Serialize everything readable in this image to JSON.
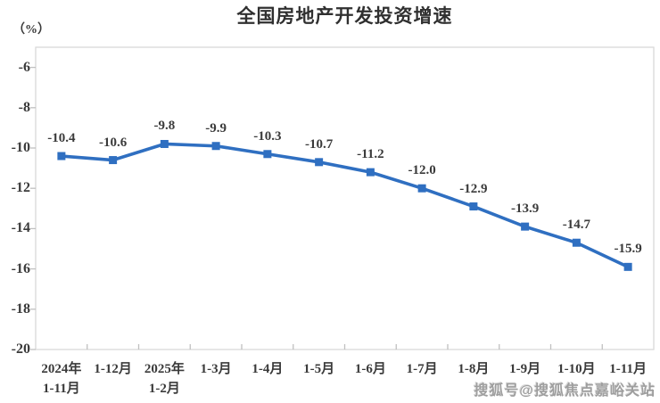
{
  "title": {
    "text": "全国房地产开发投资增速"
  },
  "unit_label": "（%）",
  "watermark": {
    "text": "搜狐号@搜狐焦点嘉峪关站"
  },
  "colors": {
    "line": "#2f6fc1",
    "marker": "#2f6fc1",
    "text": "#3a3a3a",
    "title": "#303030",
    "axis_border": "#d9d9d9",
    "tick": "#c0c0c0",
    "watermark": "#9e9e9e",
    "background": "#ffffff"
  },
  "chart_data": {
    "type": "line",
    "title": "全国房地产开发投资增速",
    "ylabel": "（%）",
    "categories": [
      [
        "2024年",
        "1-11月"
      ],
      [
        "1-12月"
      ],
      [
        "2025年",
        "1-2月"
      ],
      [
        "1-3月"
      ],
      [
        "1-4月"
      ],
      [
        "1-5月"
      ],
      [
        "1-6月"
      ],
      [
        "1-7月"
      ],
      [
        "1-8月"
      ],
      [
        "1-9月"
      ],
      [
        "1-10月"
      ],
      [
        "1-11月"
      ]
    ],
    "values": [
      -10.4,
      -10.6,
      -9.8,
      -9.9,
      -10.3,
      -10.7,
      -11.2,
      -12.0,
      -12.9,
      -13.9,
      -14.7,
      -15.9
    ],
    "data_labels": [
      "-10.4",
      "-10.6",
      "-9.8",
      "-9.9",
      "-10.3",
      "-10.7",
      "-11.2",
      "-12.0",
      "-12.9",
      "-13.9",
      "-14.7",
      "-15.9"
    ],
    "yticks": [
      -6,
      -8,
      -10,
      -12,
      -14,
      -16,
      -18,
      -20
    ],
    "ylim": [
      -20,
      -5
    ],
    "grid": false,
    "legend": false,
    "marker": "square",
    "data_label_position": "above"
  }
}
